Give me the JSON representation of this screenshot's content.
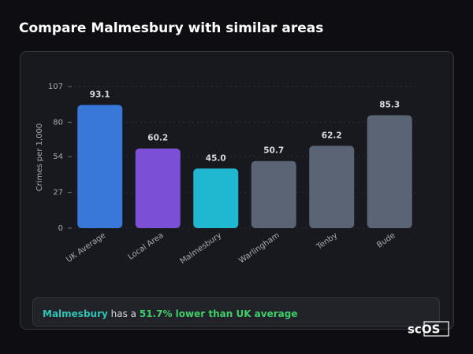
{
  "chart_data": {
    "type": "bar",
    "title": "Compare Malmesbury with similar areas",
    "y_label": "Crimes per 1,000",
    "categories": [
      "UK Average",
      "Local Area",
      "Malmesbury",
      "Warlingham",
      "Tenby",
      "Bude"
    ],
    "values": [
      93.1,
      60.2,
      45.0,
      50.7,
      62.2,
      85.3
    ],
    "value_labels": [
      "93.1",
      "60.2",
      "45.0",
      "50.7",
      "62.2",
      "85.3"
    ],
    "colors": [
      "#3a78d8",
      "#7b4fd6",
      "#1fb8d0",
      "#5b6474",
      "#5b6474",
      "#5b6474"
    ],
    "ylim": [
      0,
      107
    ],
    "yticks": [
      0,
      27,
      54,
      80,
      107
    ],
    "grid": true
  },
  "summary": {
    "area": "Malmesbury",
    "text": "has a",
    "highlight": "51.7% lower than UK average"
  },
  "logo": "scOS"
}
